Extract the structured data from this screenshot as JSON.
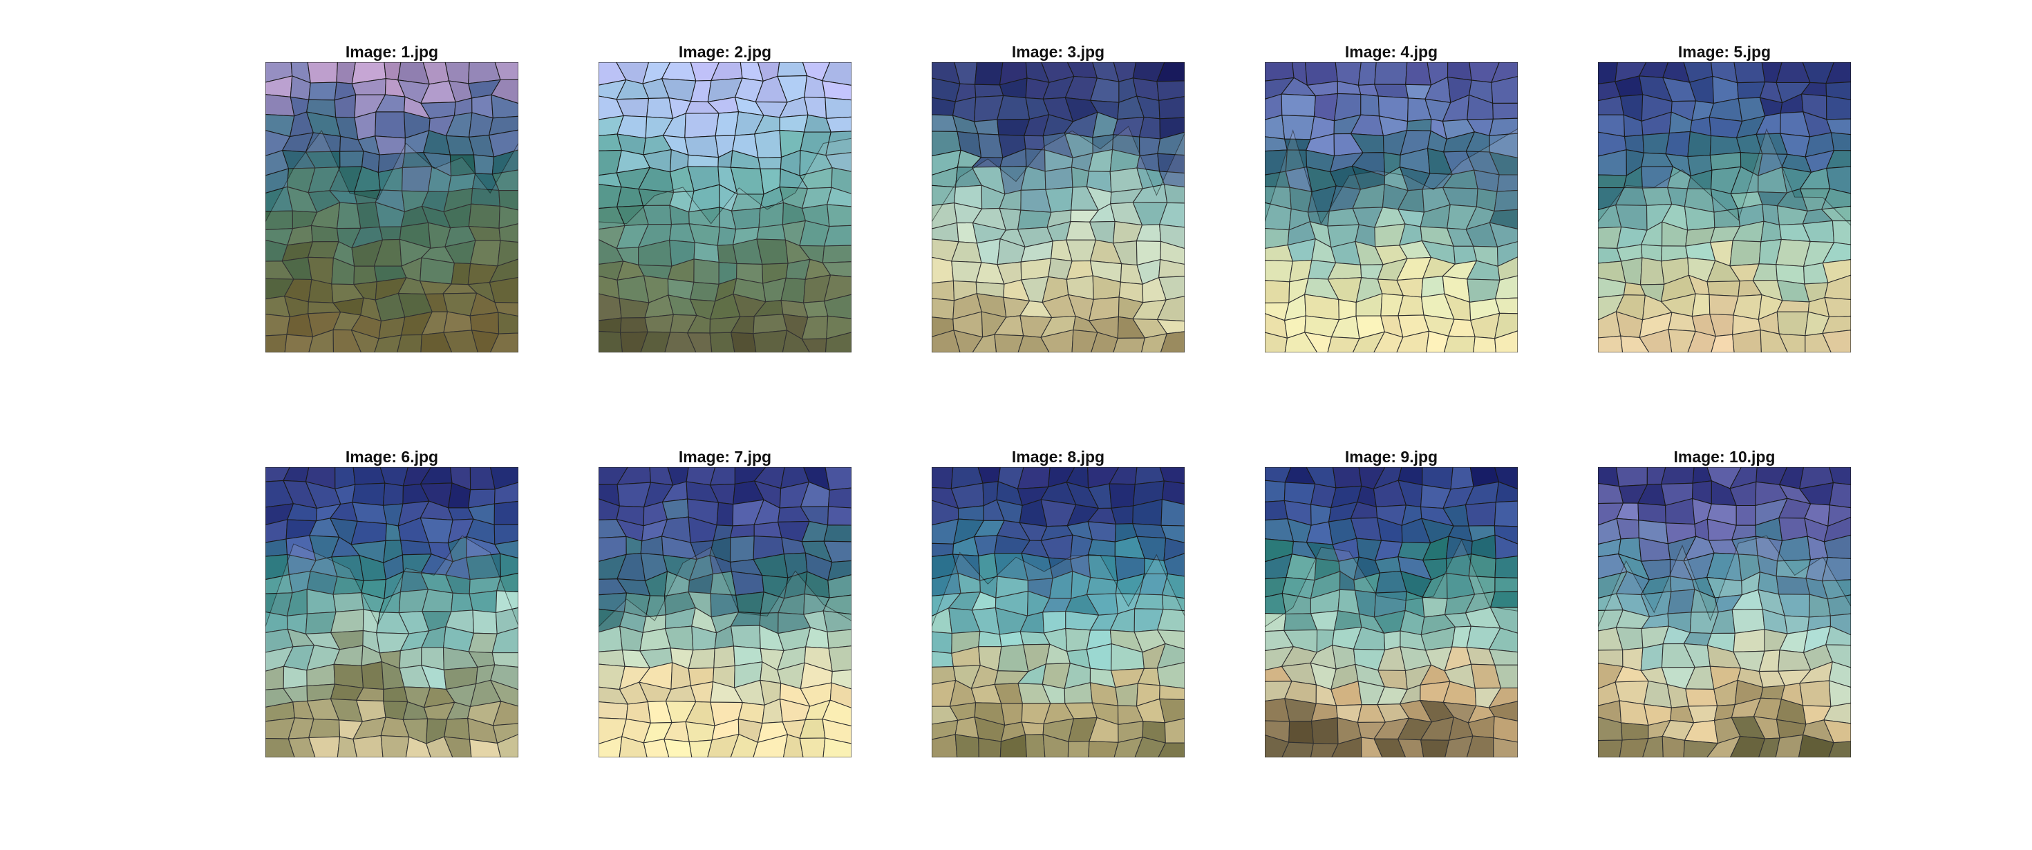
{
  "figure": {
    "panels": [
      {
        "title": "Image: 1.jpg",
        "palette": [
          "#b898c6",
          "#5e6fa6",
          "#2f6f74",
          "#3e6b4f",
          "#5a5a2a",
          "#6a5a2a"
        ],
        "icon": "mountain-photo-superpixels"
      },
      {
        "title": "Image: 2.jpg",
        "palette": [
          "#b7b8f0",
          "#9fc3e6",
          "#6fb3b2",
          "#4a8a7c",
          "#5a6a3e",
          "#4e4b2a"
        ],
        "icon": "mountain-photo-superpixels"
      },
      {
        "title": "Image: 3.jpg",
        "palette": [
          "#27296b",
          "#3b4d86",
          "#6aa7a6",
          "#b9d7c3",
          "#d8cf9a",
          "#9c8b5a"
        ],
        "icon": "mountain-photo-superpixels"
      },
      {
        "title": "Image: 4.jpg",
        "palette": [
          "#4c4f98",
          "#6c83c0",
          "#2c6674",
          "#86c1b8",
          "#e9e6a8",
          "#f4e5a8"
        ],
        "icon": "mountain-photo-superpixels"
      },
      {
        "title": "Image: 5.jpg",
        "palette": [
          "#2b3279",
          "#4b6aa8",
          "#3f7f86",
          "#8ec8b8",
          "#d7cf96",
          "#e6c798"
        ],
        "icon": "mountain-photo-superpixels"
      },
      {
        "title": "Image: 6.jpg",
        "palette": [
          "#2a2f78",
          "#3e58a0",
          "#3a8a8a",
          "#9fcfc2",
          "#7a7a4a",
          "#d8c896"
        ],
        "icon": "mountain-photo-superpixels"
      },
      {
        "title": "Image: 7.jpg",
        "palette": [
          "#2b327c",
          "#4d5aa4",
          "#2e6f74",
          "#a9d4c0",
          "#f0d8a0",
          "#f6eca8"
        ],
        "icon": "mountain-photo-superpixels"
      },
      {
        "title": "Image: 8.jpg",
        "palette": [
          "#2a2d78",
          "#34508f",
          "#3b8fa0",
          "#8ccfc6",
          "#c9b67e",
          "#6f6b3a"
        ],
        "icon": "mountain-photo-superpixels"
      },
      {
        "title": "Image: 9.jpg",
        "palette": [
          "#262b74",
          "#3d5aa0",
          "#2f7f7e",
          "#a6d4c2",
          "#d8b57e",
          "#5a4b2a"
        ],
        "icon": "mountain-photo-superpixels"
      },
      {
        "title": "Image: 10.jpg",
        "palette": [
          "#2b2f7a",
          "#6f6fb4",
          "#4a8aa0",
          "#9fd2c6",
          "#e0c48c",
          "#5f5a30"
        ],
        "icon": "mountain-photo-superpixels"
      }
    ]
  }
}
